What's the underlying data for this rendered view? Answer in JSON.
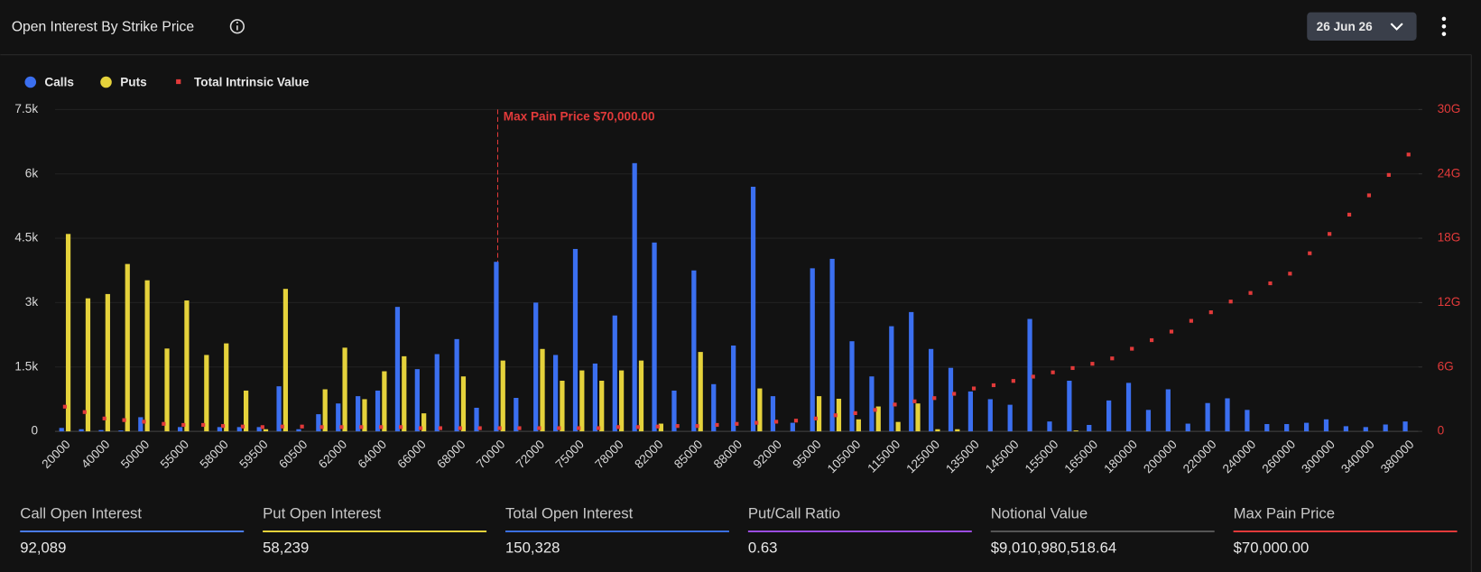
{
  "header": {
    "title": "Open Interest By Strike Price",
    "date": "26 Jun 26"
  },
  "chart_data": {
    "type": "bar",
    "categories": [
      "20000",
      null,
      "40000",
      null,
      "50000",
      null,
      "55000",
      null,
      "58000",
      null,
      "59500",
      null,
      "60500",
      null,
      "62000",
      null,
      "64000",
      null,
      "66000",
      null,
      "68000",
      null,
      "70000",
      null,
      "72000",
      null,
      "75000",
      null,
      "78000",
      null,
      "82000",
      null,
      "85000",
      null,
      "88000",
      null,
      "92000",
      null,
      "95000",
      null,
      "105000",
      null,
      "115000",
      null,
      "125000",
      null,
      "135000",
      null,
      "145000",
      null,
      "155000",
      null,
      "165000",
      null,
      "180000",
      null,
      "200000",
      null,
      "220000",
      null,
      "240000",
      null,
      "260000",
      null,
      "300000",
      null,
      "340000",
      null,
      "380000"
    ],
    "series": [
      {
        "name": "Calls",
        "color": "#3b6ff0",
        "type": "bar",
        "values": [
          0.08,
          0.05,
          0.03,
          0.02,
          0.33,
          0,
          0.1,
          0,
          0.1,
          0.1,
          0.1,
          1.05,
          0.05,
          0.4,
          0.65,
          0.82,
          0.95,
          2.9,
          1.45,
          1.8,
          2.15,
          0.55,
          3.95,
          0.78,
          3.0,
          1.78,
          4.25,
          1.58,
          2.7,
          6.25,
          4.4,
          0.95,
          3.75,
          1.1,
          2.0,
          5.7,
          0.82,
          0.2,
          3.8,
          4.02,
          2.1,
          1.28,
          2.45,
          2.78,
          1.92,
          1.48,
          0.93,
          0.75,
          0.62,
          2.62,
          0.23,
          1.18,
          0.15,
          0.72,
          1.13,
          0.5,
          0.98,
          0.18,
          0.66,
          0.77,
          0.5,
          0.17,
          0.17,
          0.2,
          0.28,
          0.12,
          0.1,
          0.16,
          0.23
        ]
      },
      {
        "name": "Puts",
        "color": "#e5d23b",
        "type": "bar",
        "values": [
          4.6,
          3.1,
          3.2,
          3.9,
          3.52,
          1.93,
          3.05,
          1.78,
          2.05,
          0.95,
          0.05,
          3.32,
          0,
          0.98,
          1.95,
          0.75,
          1.4,
          1.75,
          0.42,
          0,
          1.28,
          0,
          1.65,
          0,
          1.92,
          1.18,
          1.42,
          1.18,
          1.42,
          1.65,
          0.18,
          0,
          1.85,
          0,
          0,
          1.0,
          0,
          0,
          0.82,
          0.76,
          0.28,
          0.58,
          0.22,
          0.65,
          0.05,
          0.05,
          0,
          0,
          0,
          0,
          0,
          0.02,
          0,
          0,
          0,
          0,
          0,
          0,
          0,
          0,
          0,
          0,
          0,
          0,
          0,
          0,
          0,
          0,
          0
        ]
      },
      {
        "name": "Total Intrinsic Value",
        "color": "#e23a3a",
        "type": "scatter",
        "axis": "y2",
        "values": [
          2.3,
          1.8,
          1.2,
          1.05,
          0.9,
          0.7,
          0.6,
          0.6,
          0.5,
          0.45,
          0.4,
          0.45,
          0.45,
          0.4,
          0.4,
          0.4,
          0.4,
          0.4,
          0.3,
          0.3,
          0.3,
          0.3,
          0.3,
          0.3,
          0.3,
          0.3,
          0.3,
          0.3,
          0.4,
          0.4,
          0.45,
          0.5,
          0.5,
          0.6,
          0.7,
          0.8,
          0.9,
          1.0,
          1.2,
          1.5,
          1.7,
          2.0,
          2.5,
          2.8,
          3.1,
          3.5,
          4.0,
          4.3,
          4.7,
          5.1,
          5.5,
          5.9,
          6.3,
          6.8,
          7.7,
          8.5,
          9.3,
          10.3,
          11.1,
          12.1,
          12.9,
          13.8,
          14.7,
          16.6,
          18.4,
          20.2,
          22.0,
          23.9,
          25.8
        ]
      }
    ],
    "ylim": [
      0,
      7.5
    ],
    "yticks": [
      0,
      {
        "value": 1.5,
        "label": "1.5k"
      },
      {
        "value": 3,
        "label": "3k"
      },
      {
        "value": 4.5,
        "label": "4.5k"
      },
      {
        "value": 6,
        "label": "6k"
      },
      {
        "value": 7.5,
        "label": "7.5k"
      }
    ],
    "y2lim": [
      0,
      30
    ],
    "y2ticks": [
      0,
      {
        "value": 6,
        "label": "6G"
      },
      {
        "value": 12,
        "label": "12G"
      },
      {
        "value": 18,
        "label": "18G"
      },
      {
        "value": 24,
        "label": "24G"
      },
      {
        "value": 30,
        "label": "30G"
      }
    ],
    "grid": true,
    "annotation": {
      "text": "Max Pain Price $70,000.00",
      "at": "70000",
      "color": "#e23a3a"
    }
  },
  "stats": [
    {
      "label": "Call Open Interest",
      "value": "92,089",
      "color": "#4a7cf0"
    },
    {
      "label": "Put Open Interest",
      "value": "58,239",
      "color": "#e5d23b"
    },
    {
      "label": "Total Open Interest",
      "value": "150,328",
      "color": "#3b6fe0"
    },
    {
      "label": "Put/Call Ratio",
      "value": "0.63",
      "color": "#9b4de0"
    },
    {
      "label": "Notional Value",
      "value": "$9,010,980,518.64",
      "color": "#555555"
    },
    {
      "label": "Max Pain Price",
      "value": "$70,000.00",
      "color": "#e23a3a"
    }
  ]
}
